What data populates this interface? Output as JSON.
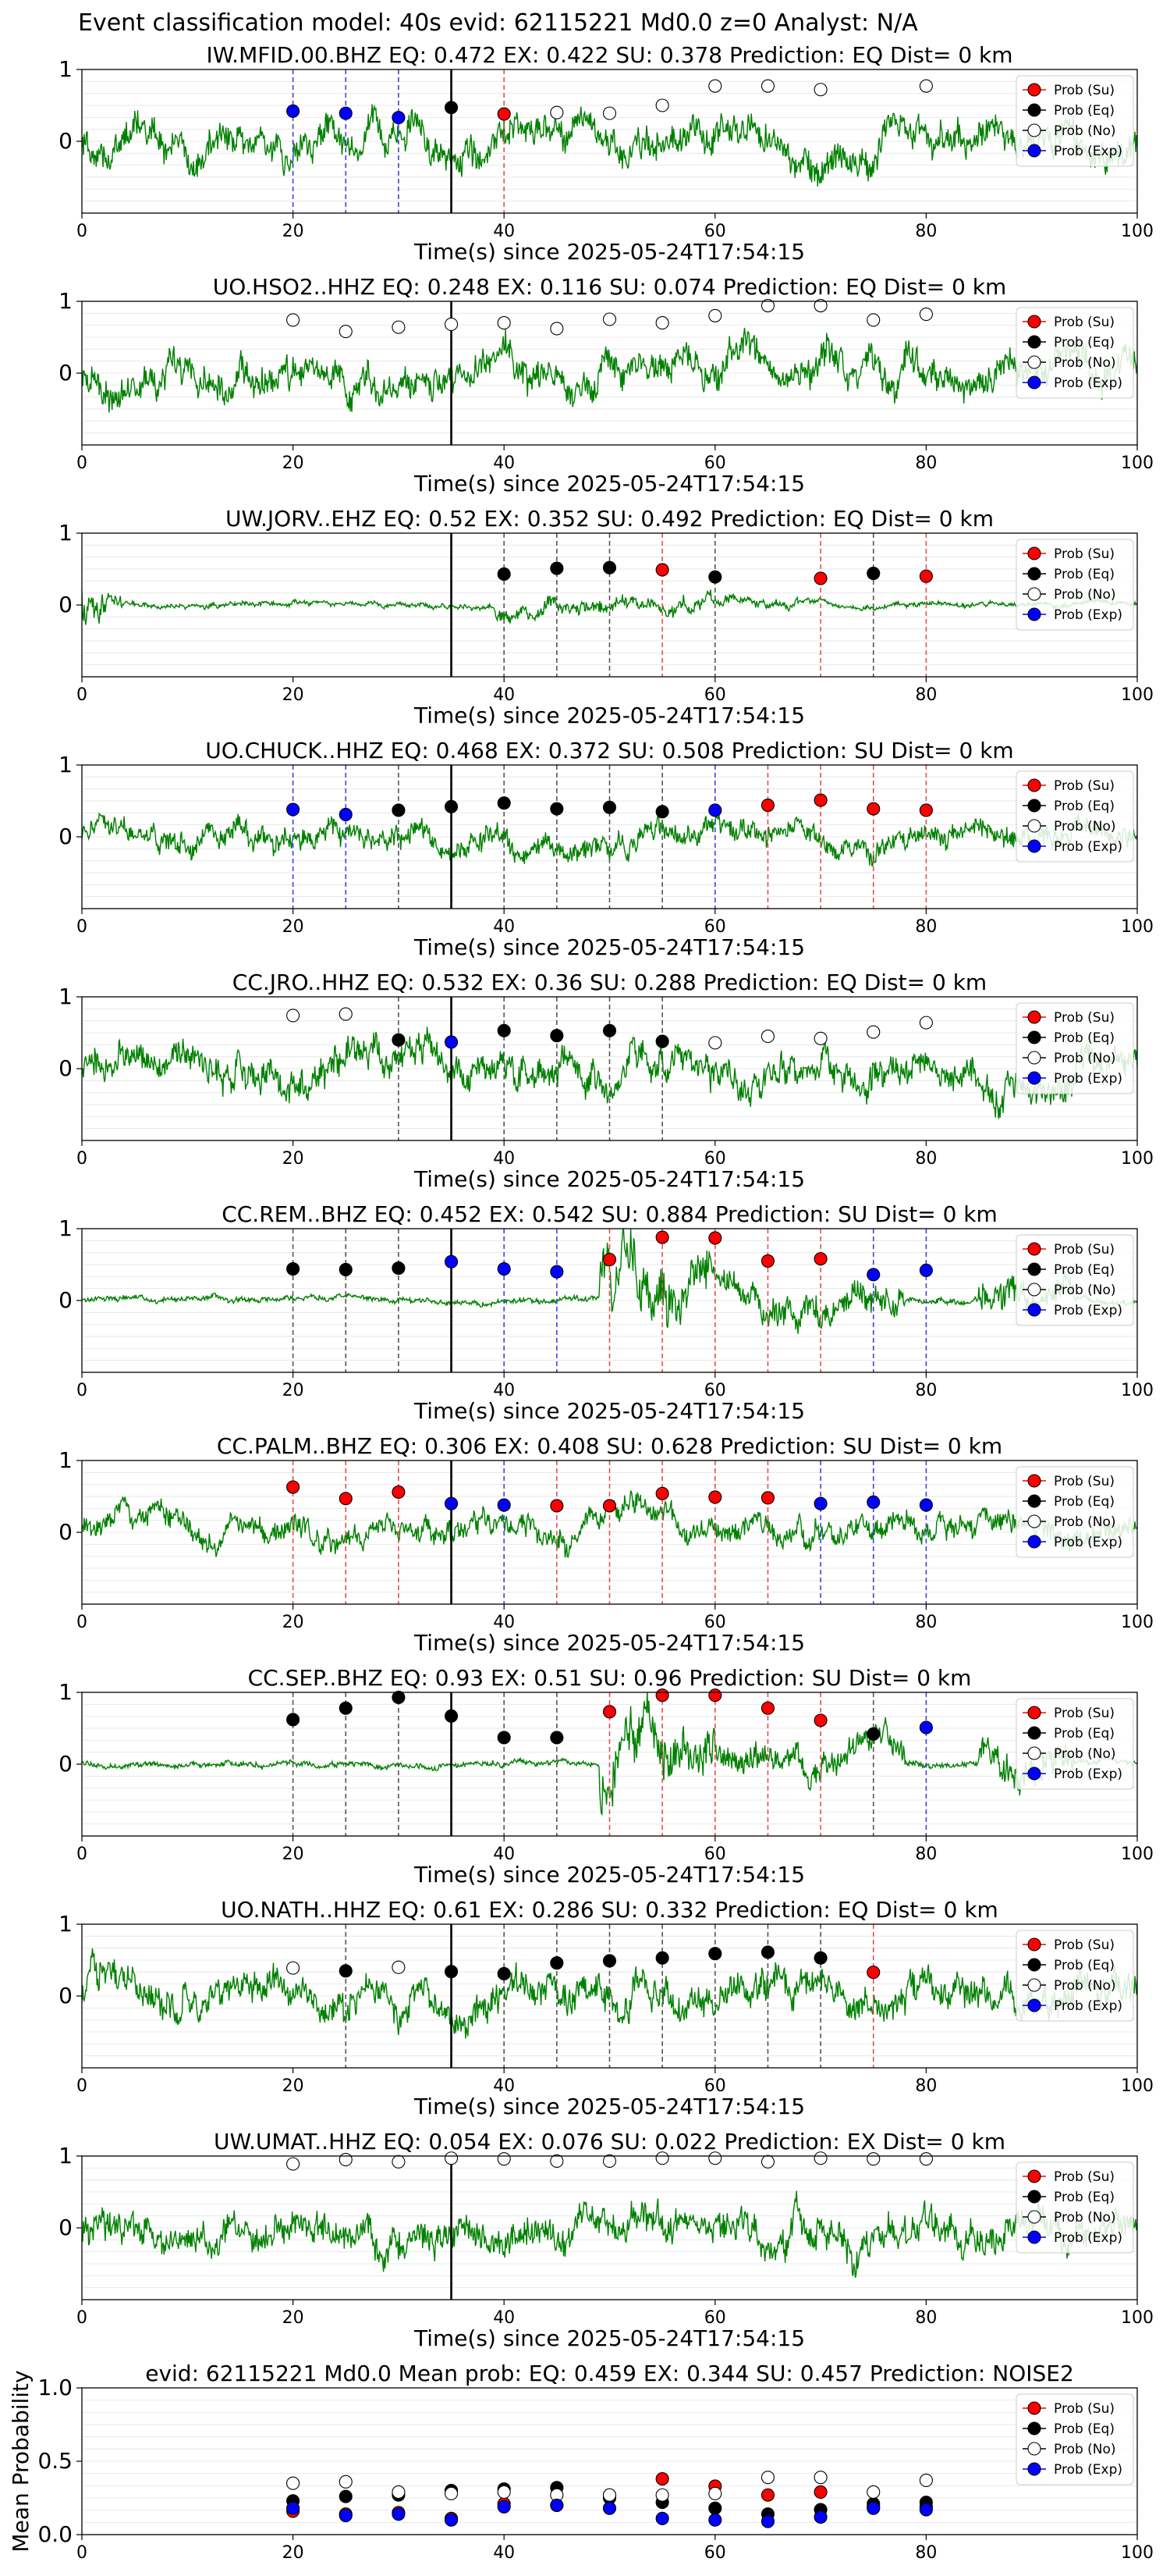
{
  "figure": {
    "suptitle": "Event classification model: 40s evid: 62115221 Md0.0 z=0 Analyst: N/A"
  },
  "legend_labels": [
    "Prob (Su)",
    "Prob (Eq)",
    "Prob (No)",
    "Prob (Exp)"
  ],
  "colors": {
    "Su": "#ff0000",
    "Eq": "#000000",
    "No": "#ffffff",
    "Exp": "#0000ff",
    "waveform": "#008000"
  },
  "chart_data": [
    {
      "type": "line",
      "title": "IW.MFID.00.BHZ   EQ: 0.472  EX: 0.422  SU: 0.378   Prediction: EQ    Dist= 0 km",
      "xlabel": "Time(s) since 2025-05-24T17:54:15",
      "xlim": [
        0,
        100
      ],
      "ylim": [
        -1,
        1
      ],
      "xticks": [
        0,
        20,
        40,
        60,
        80,
        100
      ],
      "yticks": [
        0,
        1
      ],
      "marker_line_x": 35,
      "noise": "high",
      "points": [
        {
          "x": 20,
          "y": 0.42,
          "cls": "Exp"
        },
        {
          "x": 25,
          "y": 0.39,
          "cls": "Exp"
        },
        {
          "x": 30,
          "y": 0.33,
          "cls": "Exp"
        },
        {
          "x": 35,
          "y": 0.47,
          "cls": "Eq"
        },
        {
          "x": 40,
          "y": 0.38,
          "cls": "Su"
        },
        {
          "x": 45,
          "y": 0.4,
          "cls": "No"
        },
        {
          "x": 50,
          "y": 0.39,
          "cls": "No"
        },
        {
          "x": 55,
          "y": 0.5,
          "cls": "No"
        },
        {
          "x": 60,
          "y": 0.77,
          "cls": "No"
        },
        {
          "x": 65,
          "y": 0.77,
          "cls": "No"
        },
        {
          "x": 70,
          "y": 0.72,
          "cls": "No"
        },
        {
          "x": 80,
          "y": 0.77,
          "cls": "No"
        }
      ]
    },
    {
      "type": "line",
      "title": "UO.HSO2..HHZ   EQ: 0.248  EX: 0.116  SU: 0.074   Prediction: EQ    Dist= 0 km",
      "xlabel": "Time(s) since 2025-05-24T17:54:15",
      "xlim": [
        0,
        100
      ],
      "ylim": [
        -1,
        1
      ],
      "xticks": [
        0,
        20,
        40,
        60,
        80,
        100
      ],
      "yticks": [
        0,
        1
      ],
      "marker_line_x": 35,
      "noise": "high",
      "points": [
        {
          "x": 20,
          "y": 0.74,
          "cls": "No"
        },
        {
          "x": 25,
          "y": 0.58,
          "cls": "No"
        },
        {
          "x": 30,
          "y": 0.64,
          "cls": "No"
        },
        {
          "x": 35,
          "y": 0.68,
          "cls": "No"
        },
        {
          "x": 40,
          "y": 0.7,
          "cls": "No"
        },
        {
          "x": 45,
          "y": 0.62,
          "cls": "No"
        },
        {
          "x": 50,
          "y": 0.75,
          "cls": "No"
        },
        {
          "x": 55,
          "y": 0.7,
          "cls": "No"
        },
        {
          "x": 60,
          "y": 0.8,
          "cls": "No"
        },
        {
          "x": 65,
          "y": 0.94,
          "cls": "No"
        },
        {
          "x": 70,
          "y": 0.94,
          "cls": "No"
        },
        {
          "x": 75,
          "y": 0.74,
          "cls": "No"
        },
        {
          "x": 80,
          "y": 0.82,
          "cls": "No"
        }
      ]
    },
    {
      "type": "line",
      "title": "UW.JORV..EHZ   EQ: 0.52  EX: 0.352  SU: 0.492   Prediction: EQ    Dist= 0 km",
      "xlabel": "Time(s) since 2025-05-24T17:54:15",
      "xlim": [
        0,
        100
      ],
      "ylim": [
        -1,
        1
      ],
      "xticks": [
        0,
        20,
        40,
        60,
        80,
        100
      ],
      "yticks": [
        0,
        1
      ],
      "marker_line_x": 35,
      "noise": "quiet",
      "points": [
        {
          "x": 40,
          "y": 0.43,
          "cls": "Eq"
        },
        {
          "x": 45,
          "y": 0.51,
          "cls": "Eq"
        },
        {
          "x": 50,
          "y": 0.52,
          "cls": "Eq"
        },
        {
          "x": 55,
          "y": 0.49,
          "cls": "Su"
        },
        {
          "x": 60,
          "y": 0.39,
          "cls": "Eq"
        },
        {
          "x": 70,
          "y": 0.37,
          "cls": "Su"
        },
        {
          "x": 75,
          "y": 0.44,
          "cls": "Eq"
        },
        {
          "x": 80,
          "y": 0.4,
          "cls": "Su"
        }
      ]
    },
    {
      "type": "line",
      "title": "UO.CHUCK..HHZ   EQ: 0.468  EX: 0.372  SU: 0.508   Prediction: SU    Dist= 0 km",
      "xlabel": "Time(s) since 2025-05-24T17:54:15",
      "xlim": [
        0,
        100
      ],
      "ylim": [
        -1,
        1
      ],
      "xticks": [
        0,
        20,
        40,
        60,
        80,
        100
      ],
      "yticks": [
        0,
        1
      ],
      "marker_line_x": 35,
      "noise": "medium",
      "points": [
        {
          "x": 20,
          "y": 0.38,
          "cls": "Exp"
        },
        {
          "x": 25,
          "y": 0.31,
          "cls": "Exp"
        },
        {
          "x": 30,
          "y": 0.37,
          "cls": "Eq"
        },
        {
          "x": 35,
          "y": 0.42,
          "cls": "Eq"
        },
        {
          "x": 40,
          "y": 0.47,
          "cls": "Eq"
        },
        {
          "x": 45,
          "y": 0.39,
          "cls": "Eq"
        },
        {
          "x": 50,
          "y": 0.41,
          "cls": "Eq"
        },
        {
          "x": 55,
          "y": 0.35,
          "cls": "Eq"
        },
        {
          "x": 60,
          "y": 0.37,
          "cls": "Exp"
        },
        {
          "x": 65,
          "y": 0.44,
          "cls": "Su"
        },
        {
          "x": 70,
          "y": 0.51,
          "cls": "Su"
        },
        {
          "x": 75,
          "y": 0.39,
          "cls": "Su"
        },
        {
          "x": 80,
          "y": 0.37,
          "cls": "Su"
        }
      ]
    },
    {
      "type": "line",
      "title": "CC.JRO..HHZ   EQ: 0.532  EX: 0.36  SU: 0.288   Prediction: EQ    Dist= 0 km",
      "xlabel": "Time(s) since 2025-05-24T17:54:15",
      "xlim": [
        0,
        100
      ],
      "ylim": [
        -1,
        1
      ],
      "xticks": [
        0,
        20,
        40,
        60,
        80,
        100
      ],
      "yticks": [
        0,
        1
      ],
      "marker_line_x": 35,
      "noise": "high",
      "points": [
        {
          "x": 20,
          "y": 0.74,
          "cls": "No"
        },
        {
          "x": 25,
          "y": 0.76,
          "cls": "No"
        },
        {
          "x": 30,
          "y": 0.4,
          "cls": "Eq"
        },
        {
          "x": 35,
          "y": 0.37,
          "cls": "Exp"
        },
        {
          "x": 40,
          "y": 0.53,
          "cls": "Eq"
        },
        {
          "x": 45,
          "y": 0.46,
          "cls": "Eq"
        },
        {
          "x": 50,
          "y": 0.53,
          "cls": "Eq"
        },
        {
          "x": 55,
          "y": 0.38,
          "cls": "Eq"
        },
        {
          "x": 60,
          "y": 0.36,
          "cls": "No"
        },
        {
          "x": 65,
          "y": 0.45,
          "cls": "No"
        },
        {
          "x": 70,
          "y": 0.42,
          "cls": "No"
        },
        {
          "x": 75,
          "y": 0.51,
          "cls": "No"
        },
        {
          "x": 80,
          "y": 0.64,
          "cls": "No"
        }
      ]
    },
    {
      "type": "line",
      "title": "CC.REM..BHZ   EQ: 0.452  EX: 0.542  SU: 0.884   Prediction: SU    Dist= 0 km",
      "xlabel": "Time(s) since 2025-05-24T17:54:15",
      "xlim": [
        0,
        100
      ],
      "ylim": [
        -1,
        1
      ],
      "xticks": [
        0,
        20,
        40,
        60,
        80,
        100
      ],
      "yticks": [
        0,
        1
      ],
      "marker_line_x": 35,
      "noise": "burst-late",
      "points": [
        {
          "x": 20,
          "y": 0.44,
          "cls": "Eq"
        },
        {
          "x": 25,
          "y": 0.43,
          "cls": "Eq"
        },
        {
          "x": 30,
          "y": 0.45,
          "cls": "Eq"
        },
        {
          "x": 35,
          "y": 0.54,
          "cls": "Exp"
        },
        {
          "x": 40,
          "y": 0.44,
          "cls": "Exp"
        },
        {
          "x": 45,
          "y": 0.4,
          "cls": "Exp"
        },
        {
          "x": 50,
          "y": 0.57,
          "cls": "Su"
        },
        {
          "x": 55,
          "y": 0.88,
          "cls": "Su"
        },
        {
          "x": 60,
          "y": 0.87,
          "cls": "Su"
        },
        {
          "x": 65,
          "y": 0.55,
          "cls": "Su"
        },
        {
          "x": 70,
          "y": 0.58,
          "cls": "Su"
        },
        {
          "x": 75,
          "y": 0.36,
          "cls": "Exp"
        },
        {
          "x": 80,
          "y": 0.42,
          "cls": "Exp"
        }
      ]
    },
    {
      "type": "line",
      "title": "CC.PALM..BHZ   EQ: 0.306  EX: 0.408  SU: 0.628   Prediction: SU    Dist= 0 km",
      "xlabel": "Time(s) since 2025-05-24T17:54:15",
      "xlim": [
        0,
        100
      ],
      "ylim": [
        -1,
        1
      ],
      "xticks": [
        0,
        20,
        40,
        60,
        80,
        100
      ],
      "yticks": [
        0,
        1
      ],
      "marker_line_x": 35,
      "noise": "medium",
      "points": [
        {
          "x": 20,
          "y": 0.63,
          "cls": "Su"
        },
        {
          "x": 25,
          "y": 0.47,
          "cls": "Su"
        },
        {
          "x": 30,
          "y": 0.56,
          "cls": "Su"
        },
        {
          "x": 35,
          "y": 0.4,
          "cls": "Exp"
        },
        {
          "x": 40,
          "y": 0.38,
          "cls": "Exp"
        },
        {
          "x": 45,
          "y": 0.37,
          "cls": "Su"
        },
        {
          "x": 50,
          "y": 0.37,
          "cls": "Su"
        },
        {
          "x": 55,
          "y": 0.54,
          "cls": "Su"
        },
        {
          "x": 60,
          "y": 0.49,
          "cls": "Su"
        },
        {
          "x": 65,
          "y": 0.48,
          "cls": "Su"
        },
        {
          "x": 70,
          "y": 0.4,
          "cls": "Exp"
        },
        {
          "x": 75,
          "y": 0.42,
          "cls": "Exp"
        },
        {
          "x": 80,
          "y": 0.38,
          "cls": "Exp"
        }
      ]
    },
    {
      "type": "line",
      "title": "CC.SEP..BHZ   EQ: 0.93  EX: 0.51  SU: 0.96   Prediction: SU    Dist= 0 km",
      "xlabel": "Time(s) since 2025-05-24T17:54:15",
      "xlim": [
        0,
        100
      ],
      "ylim": [
        -1,
        1
      ],
      "xticks": [
        0,
        20,
        40,
        60,
        80,
        100
      ],
      "yticks": [
        0,
        1
      ],
      "marker_line_x": 35,
      "noise": "burst-late",
      "points": [
        {
          "x": 20,
          "y": 0.62,
          "cls": "Eq"
        },
        {
          "x": 25,
          "y": 0.78,
          "cls": "Eq"
        },
        {
          "x": 30,
          "y": 0.93,
          "cls": "Eq"
        },
        {
          "x": 35,
          "y": 0.67,
          "cls": "Eq"
        },
        {
          "x": 40,
          "y": 0.37,
          "cls": "Eq"
        },
        {
          "x": 45,
          "y": 0.37,
          "cls": "Eq"
        },
        {
          "x": 50,
          "y": 0.73,
          "cls": "Su"
        },
        {
          "x": 55,
          "y": 0.96,
          "cls": "Su"
        },
        {
          "x": 60,
          "y": 0.96,
          "cls": "Su"
        },
        {
          "x": 65,
          "y": 0.78,
          "cls": "Su"
        },
        {
          "x": 70,
          "y": 0.61,
          "cls": "Su"
        },
        {
          "x": 75,
          "y": 0.42,
          "cls": "Eq"
        },
        {
          "x": 80,
          "y": 0.51,
          "cls": "Exp"
        }
      ]
    },
    {
      "type": "line",
      "title": "UO.NATH..HHZ   EQ: 0.61  EX: 0.286  SU: 0.332   Prediction: EQ    Dist= 0 km",
      "xlabel": "Time(s) since 2025-05-24T17:54:15",
      "xlim": [
        0,
        100
      ],
      "ylim": [
        -1,
        1
      ],
      "xticks": [
        0,
        20,
        40,
        60,
        80,
        100
      ],
      "yticks": [
        0,
        1
      ],
      "marker_line_x": 35,
      "noise": "high",
      "points": [
        {
          "x": 20,
          "y": 0.39,
          "cls": "No"
        },
        {
          "x": 25,
          "y": 0.35,
          "cls": "Eq"
        },
        {
          "x": 30,
          "y": 0.4,
          "cls": "No"
        },
        {
          "x": 35,
          "y": 0.34,
          "cls": "Eq"
        },
        {
          "x": 40,
          "y": 0.31,
          "cls": "Eq"
        },
        {
          "x": 45,
          "y": 0.46,
          "cls": "Eq"
        },
        {
          "x": 50,
          "y": 0.49,
          "cls": "Eq"
        },
        {
          "x": 55,
          "y": 0.53,
          "cls": "Eq"
        },
        {
          "x": 60,
          "y": 0.59,
          "cls": "Eq"
        },
        {
          "x": 65,
          "y": 0.61,
          "cls": "Eq"
        },
        {
          "x": 70,
          "y": 0.53,
          "cls": "Eq"
        },
        {
          "x": 75,
          "y": 0.33,
          "cls": "Su"
        }
      ]
    },
    {
      "type": "line",
      "title": "UW.UMAT..HHZ   EQ: 0.054  EX: 0.076  SU: 0.022   Prediction: EX    Dist= 0 km",
      "xlabel": "Time(s) since 2025-05-24T17:54:15",
      "xlim": [
        0,
        100
      ],
      "ylim": [
        -1,
        1
      ],
      "xticks": [
        0,
        20,
        40,
        60,
        80,
        100
      ],
      "yticks": [
        0,
        1
      ],
      "marker_line_x": 35,
      "noise": "high",
      "points": [
        {
          "x": 20,
          "y": 0.89,
          "cls": "No"
        },
        {
          "x": 25,
          "y": 0.95,
          "cls": "No"
        },
        {
          "x": 30,
          "y": 0.92,
          "cls": "No"
        },
        {
          "x": 35,
          "y": 0.97,
          "cls": "No"
        },
        {
          "x": 40,
          "y": 0.96,
          "cls": "No"
        },
        {
          "x": 45,
          "y": 0.93,
          "cls": "No"
        },
        {
          "x": 50,
          "y": 0.93,
          "cls": "No"
        },
        {
          "x": 55,
          "y": 0.97,
          "cls": "No"
        },
        {
          "x": 60,
          "y": 0.97,
          "cls": "No"
        },
        {
          "x": 65,
          "y": 0.92,
          "cls": "No"
        },
        {
          "x": 70,
          "y": 0.97,
          "cls": "No"
        },
        {
          "x": 75,
          "y": 0.96,
          "cls": "No"
        },
        {
          "x": 80,
          "y": 0.96,
          "cls": "No"
        }
      ]
    },
    {
      "type": "scatter",
      "title": "evid: 62115221  Md0.0   Mean prob:   EQ: 0.459  EX: 0.344  SU: 0.457   Prediction: NOISE2",
      "xlabel": "",
      "ylabel": "Mean Probability",
      "xlim": [
        0,
        100
      ],
      "ylim": [
        0,
        1
      ],
      "xticks": [
        0,
        20,
        40,
        60,
        80,
        100
      ],
      "yticks": [
        0.0,
        0.5,
        1.0
      ],
      "ytick_labels": [
        "0.0",
        "0.5",
        "1.0"
      ],
      "series": [
        {
          "name": "Prob (Su)",
          "cls": "Su",
          "x": [
            20,
            25,
            30,
            35,
            40,
            45,
            50,
            55,
            60,
            65,
            70,
            75,
            80
          ],
          "values": [
            0.16,
            0.14,
            0.15,
            0.11,
            0.21,
            0.2,
            0.27,
            0.38,
            0.33,
            0.27,
            0.29,
            0.19,
            0.19
          ]
        },
        {
          "name": "Prob (Eq)",
          "cls": "Eq",
          "x": [
            20,
            25,
            30,
            35,
            40,
            45,
            50,
            55,
            60,
            65,
            70,
            75,
            80
          ],
          "values": [
            0.23,
            0.26,
            0.27,
            0.3,
            0.31,
            0.32,
            0.25,
            0.22,
            0.18,
            0.14,
            0.17,
            0.21,
            0.22
          ]
        },
        {
          "name": "Prob (No)",
          "cls": "No",
          "x": [
            20,
            25,
            30,
            35,
            40,
            45,
            50,
            55,
            60,
            65,
            70,
            75,
            80
          ],
          "values": [
            0.35,
            0.36,
            0.29,
            0.28,
            0.29,
            0.27,
            0.27,
            0.27,
            0.28,
            0.39,
            0.39,
            0.29,
            0.37
          ]
        },
        {
          "name": "Prob (Exp)",
          "cls": "Exp",
          "x": [
            20,
            25,
            30,
            35,
            40,
            45,
            50,
            55,
            60,
            65,
            70,
            75,
            80
          ],
          "values": [
            0.18,
            0.13,
            0.14,
            0.1,
            0.19,
            0.2,
            0.18,
            0.11,
            0.1,
            0.09,
            0.12,
            0.18,
            0.17
          ]
        }
      ]
    }
  ]
}
